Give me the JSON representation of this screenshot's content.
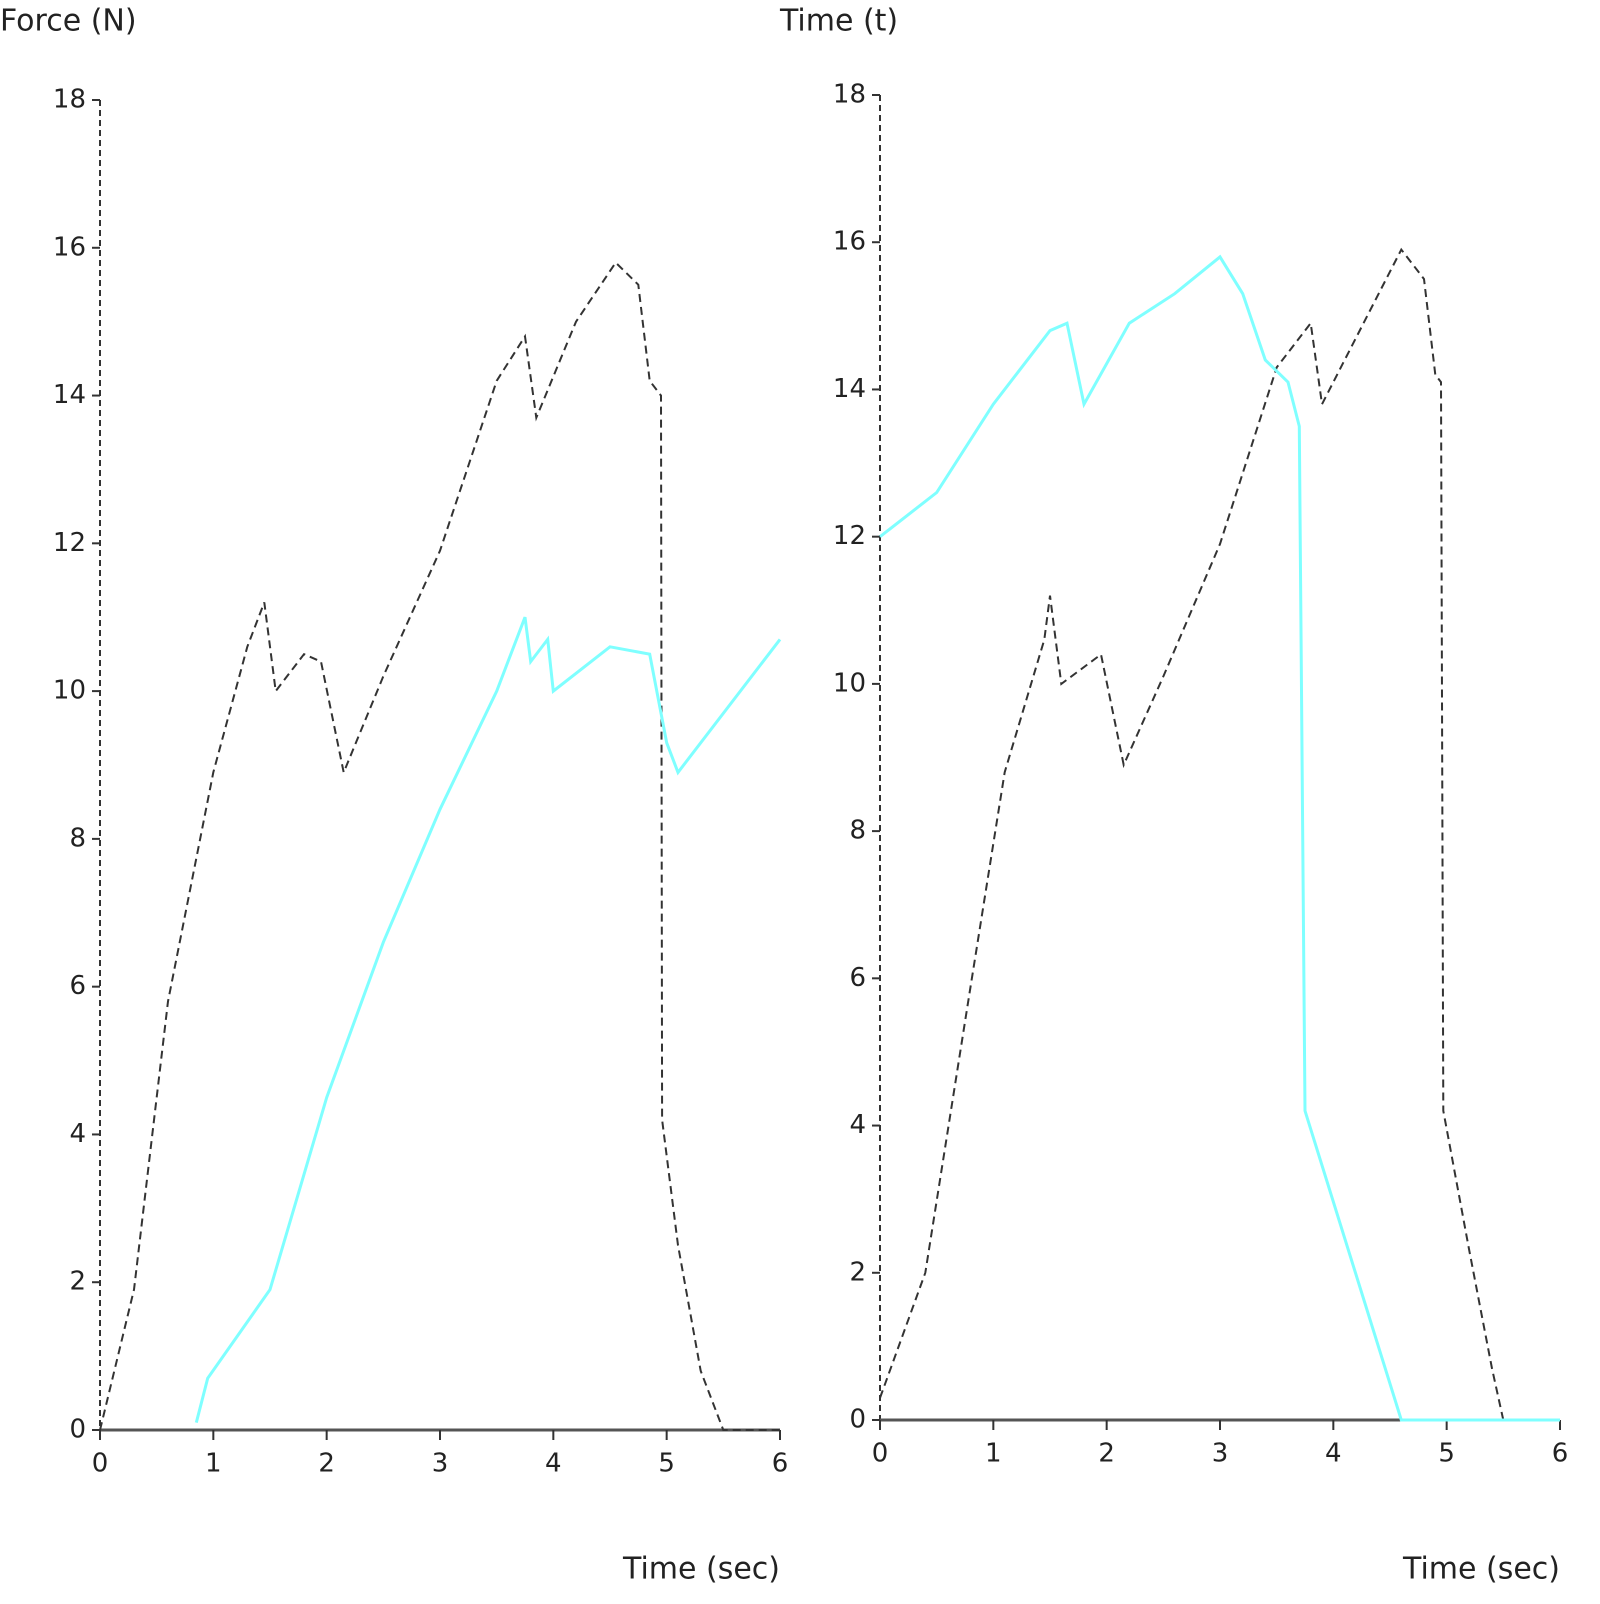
{
  "chart_data": [
    {
      "type": "line",
      "y_label": "Force (N)",
      "x_label": "Time (sec)",
      "xlim": [
        0,
        6
      ],
      "xticks": [
        0,
        1,
        2,
        3,
        4,
        5,
        6
      ],
      "ylim": [
        0,
        18
      ],
      "yticks": [
        0,
        2,
        4,
        6,
        8,
        10,
        12,
        14,
        16,
        18
      ],
      "series": [
        {
          "color": "#333333",
          "dash": true,
          "x": [
            0,
            0.3,
            0.6,
            1,
            1.3,
            1.45,
            1.55,
            1.8,
            1.95,
            2.15,
            2.5,
            3,
            3.5,
            3.75,
            3.85,
            4.2,
            4.55,
            4.75,
            4.85,
            4.95,
            4.96,
            5.1,
            5.3,
            5.5,
            6
          ],
          "values": [
            0,
            1.9,
            5.8,
            8.9,
            10.6,
            11.2,
            10,
            10.5,
            10.4,
            8.9,
            10.2,
            11.9,
            14.2,
            14.8,
            13.7,
            15,
            15.8,
            15.5,
            14.2,
            14,
            4.2,
            2.5,
            0.8,
            0,
            0
          ]
        },
        {
          "color": "#7fffff",
          "dash": false,
          "x": [
            0.85,
            0.95,
            1.5,
            2,
            2.5,
            3,
            3.5,
            3.75,
            3.8,
            3.95,
            4,
            4.5,
            4.85,
            5,
            5.1,
            6
          ],
          "values": [
            0.1,
            0.7,
            1.9,
            4.5,
            6.6,
            8.4,
            10,
            11,
            10.4,
            10.7,
            10,
            10.6,
            10.5,
            9.3,
            8.9,
            10.7
          ]
        }
      ]
    },
    {
      "type": "line",
      "y_label": "Time (t)",
      "x_label": "Time (sec)",
      "xlim": [
        0,
        6
      ],
      "xticks": [
        0,
        1,
        2,
        3,
        4,
        5,
        6
      ],
      "ylim": [
        0,
        18
      ],
      "yticks": [
        0,
        2,
        4,
        6,
        8,
        10,
        12,
        14,
        16,
        18
      ],
      "series": [
        {
          "color": "#333333",
          "dash": true,
          "x": [
            0,
            0.4,
            0.8,
            1.1,
            1.45,
            1.5,
            1.6,
            1.95,
            2.15,
            2.5,
            3,
            3.5,
            3.8,
            3.9,
            4.3,
            4.6,
            4.8,
            4.9,
            4.95,
            4.97,
            5.2,
            5.4,
            5.5,
            6
          ],
          "values": [
            0.3,
            2,
            5.9,
            8.8,
            10.6,
            11.2,
            10,
            10.4,
            8.9,
            10.1,
            11.9,
            14.3,
            14.9,
            13.8,
            15,
            15.9,
            15.5,
            14.2,
            14.1,
            4.2,
            2.3,
            0.7,
            0,
            0
          ]
        },
        {
          "color": "#7fffff",
          "dash": false,
          "x": [
            0,
            0.5,
            1,
            1.5,
            1.65,
            1.8,
            2.2,
            2.6,
            3,
            3.2,
            3.4,
            3.6,
            3.7,
            3.75,
            4.6,
            6
          ],
          "values": [
            12,
            12.6,
            13.8,
            14.8,
            14.9,
            13.8,
            14.9,
            15.3,
            15.8,
            15.3,
            14.4,
            14.1,
            13.5,
            4.2,
            0,
            0
          ]
        }
      ]
    }
  ]
}
